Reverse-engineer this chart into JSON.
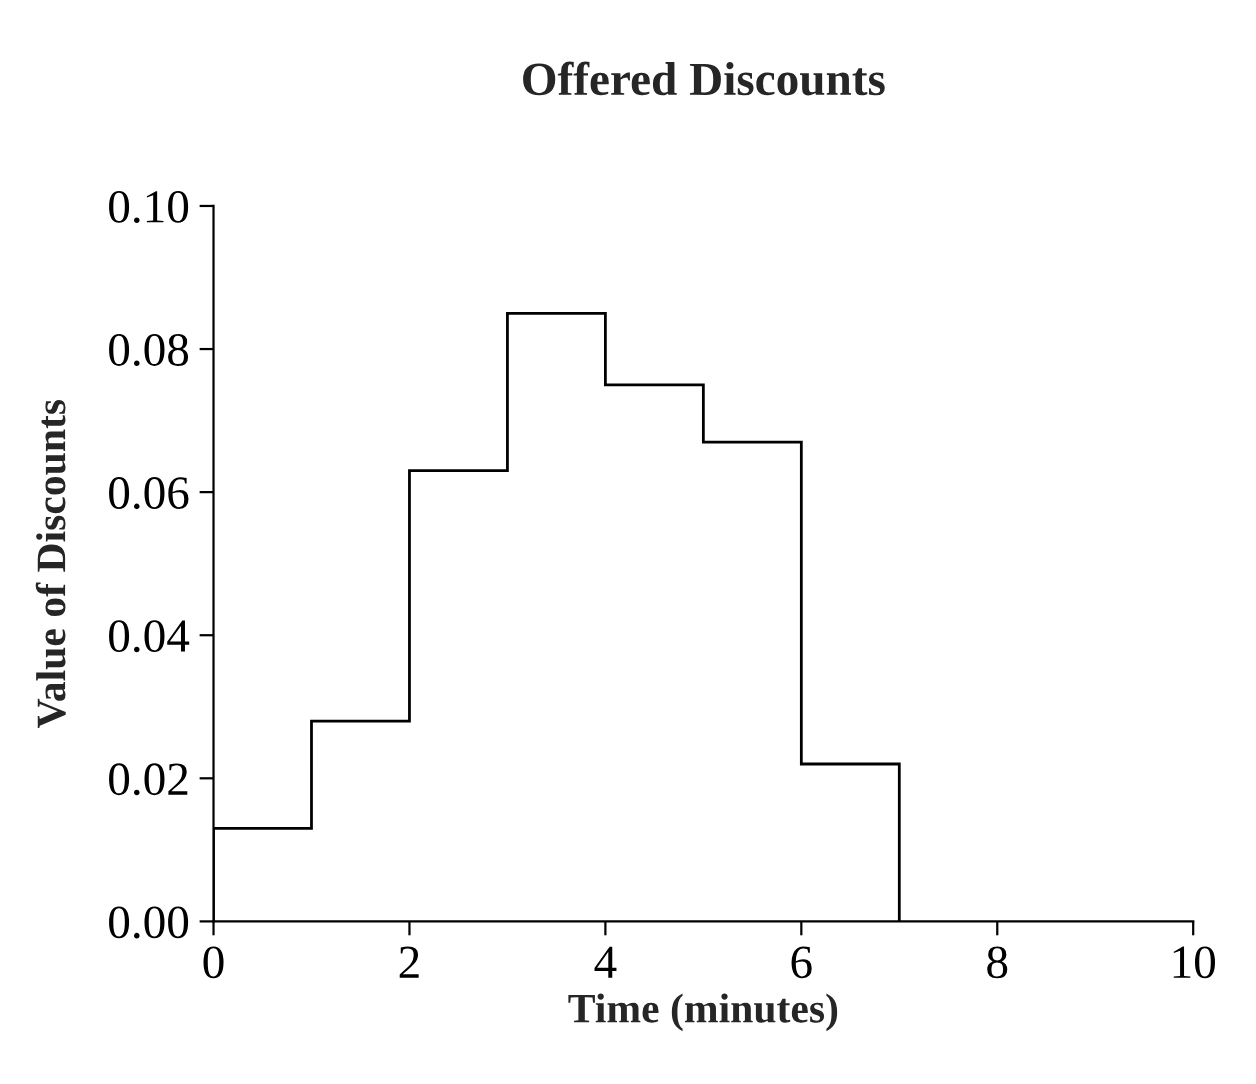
{
  "chart_data": {
    "type": "histogram",
    "title": "Offered Discounts",
    "xlabel": "Time (minutes)",
    "ylabel": "Value of Discounts",
    "bins": [
      0,
      1,
      2,
      3,
      4,
      5,
      6,
      7
    ],
    "values": [
      0.013,
      0.028,
      0.063,
      0.085,
      0.075,
      0.067,
      0.022
    ],
    "color": "#000000",
    "xlim": [
      0,
      10
    ],
    "xticks": [
      0,
      2,
      4,
      6,
      8,
      10
    ],
    "ylim": [
      0,
      0.1
    ],
    "yticks": [
      {
        "value": 0,
        "label": "0.00"
      },
      {
        "value": 0.02,
        "label": "0.02"
      },
      {
        "value": 0.04,
        "label": "0.04"
      },
      {
        "value": 0.06,
        "label": "0.06"
      },
      {
        "value": 0.08,
        "label": "0.08"
      },
      {
        "value": 0.1,
        "label": "0.10"
      }
    ],
    "grid": false,
    "legend": false
  }
}
